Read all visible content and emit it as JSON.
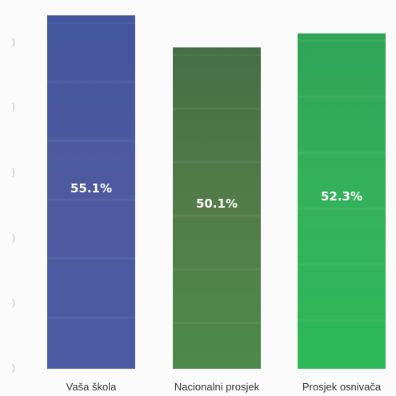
{
  "chart_data": {
    "type": "bar",
    "categories": [
      "Vaša škola",
      "Nacionalni prosjek",
      "Prosjek osnivača"
    ],
    "values": [
      55.1,
      50.1,
      52.3
    ],
    "value_labels": [
      "55.1%",
      "50.1%",
      "52.3%"
    ],
    "y_tick_labels": [
      ")",
      ")",
      ")",
      ")",
      ")",
      ")"
    ],
    "title": "",
    "xlabel": "",
    "ylabel": "",
    "grid": false,
    "legend": "none",
    "bar_colors": [
      "#4b5ba3",
      "#4e7b47",
      "#2fb057"
    ]
  }
}
